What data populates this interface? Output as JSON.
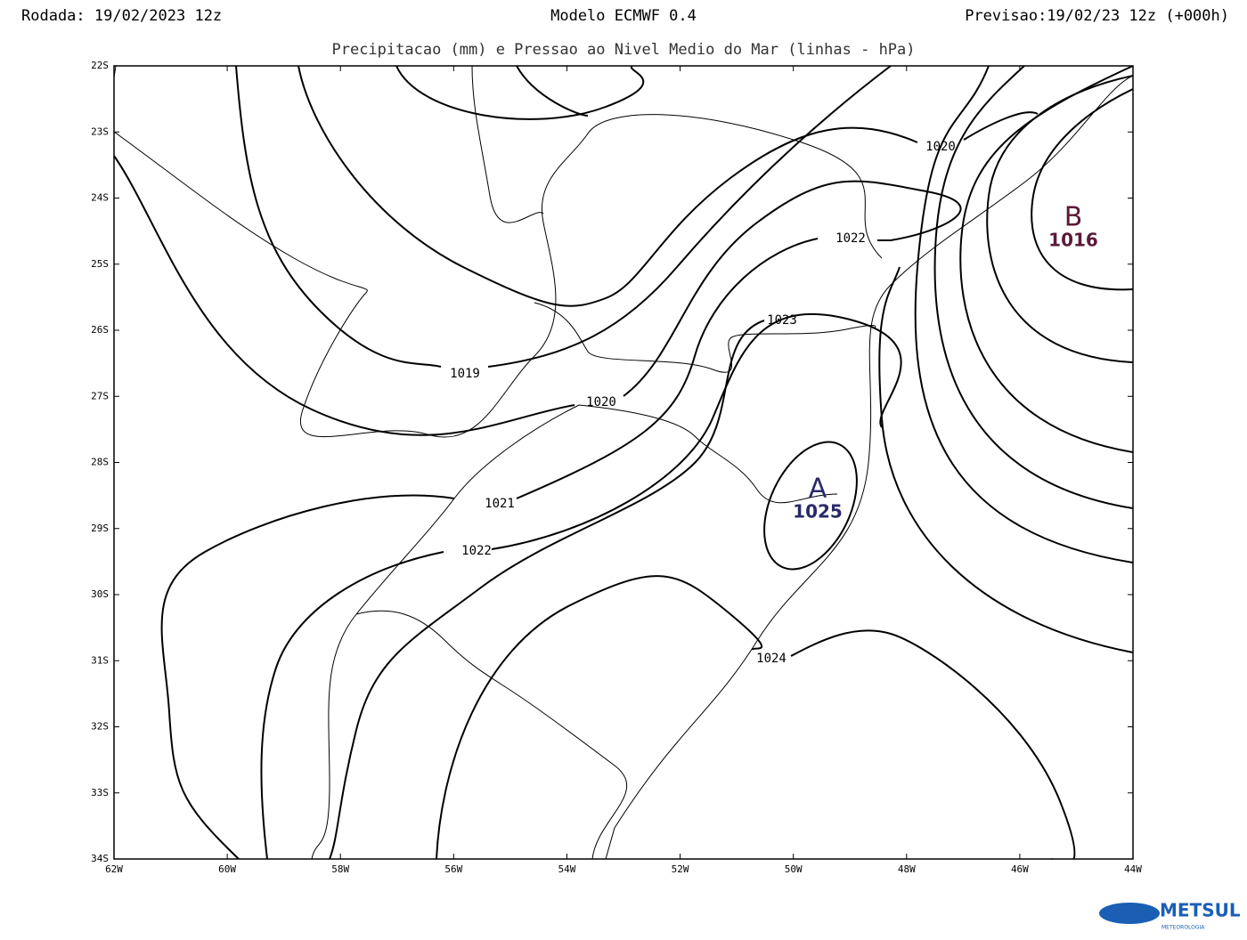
{
  "header": {
    "run": "Rodada: 19/02/2023 12z",
    "model": "Modelo ECMWF 0.4",
    "forecast": "Previsao:19/02/23 12z (+000h)",
    "subtitle": "Precipitacao (mm) e Pressao ao Nivel Medio do Mar (linhas - hPa)"
  },
  "map": {
    "lat_labels": [
      "22S",
      "23S",
      "24S",
      "25S",
      "26S",
      "27S",
      "28S",
      "29S",
      "30S",
      "31S",
      "32S",
      "33S",
      "34S"
    ],
    "lon_labels": [
      "62W",
      "60W",
      "58W",
      "56W",
      "54W",
      "52W",
      "50W",
      "48W",
      "46W",
      "44W"
    ],
    "isobar_labels": [
      "1019",
      "1020",
      "1020",
      "1021",
      "1022",
      "1022",
      "1023",
      "1024"
    ],
    "systems": [
      {
        "letter": "A",
        "value": "1025"
      },
      {
        "letter": "B",
        "value": "1016"
      }
    ]
  },
  "logo": {
    "name": "METSUL",
    "tagline": "METEOROLOGIA"
  }
}
